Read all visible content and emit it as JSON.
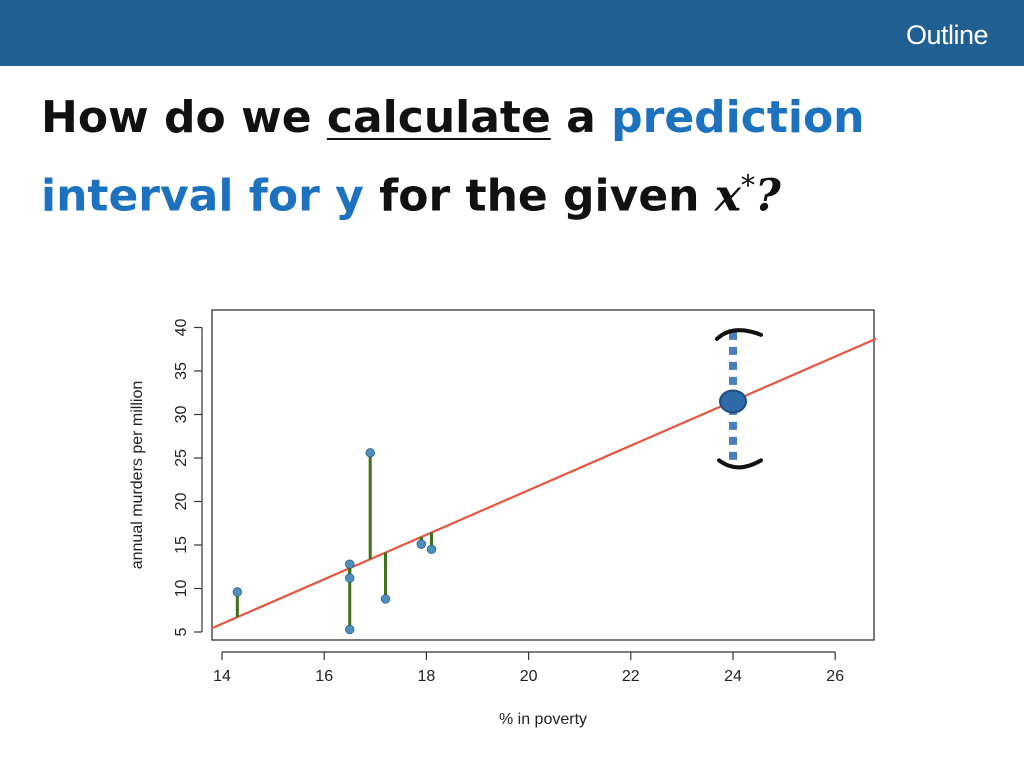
{
  "header": {
    "nav_label": "Outline",
    "bar_color": "#1f5f92"
  },
  "title": {
    "line1_part1": "How do we ",
    "line1_underlined": "calculate",
    "line1_part2": " a ",
    "line1_accent": "prediction",
    "line2_accent": "interval for y",
    "line2_part1": " for the given ",
    "math_var": "x",
    "math_sup": "*",
    "end": "?",
    "accent_color": "#1d72c0"
  },
  "chart_data": {
    "type": "scatter",
    "xlabel": "% in poverty",
    "ylabel": "annual murders per million",
    "xlim": [
      13.8,
      26.8
    ],
    "ylim": [
      4.5,
      41.5
    ],
    "x_ticks": [
      14,
      16,
      18,
      20,
      22,
      24,
      26
    ],
    "y_ticks": [
      5,
      10,
      15,
      20,
      25,
      30,
      35,
      40
    ],
    "regression_line": {
      "intercept": -29.9,
      "slope": 2.56,
      "color": "#e8553e"
    },
    "points": [
      {
        "x": 14.3,
        "y": 9.6
      },
      {
        "x": 16.5,
        "y": 12.8
      },
      {
        "x": 16.5,
        "y": 11.2
      },
      {
        "x": 16.5,
        "y": 5.3
      },
      {
        "x": 16.9,
        "y": 25.6
      },
      {
        "x": 17.2,
        "y": 8.8
      },
      {
        "x": 17.9,
        "y": 15.1
      },
      {
        "x": 18.1,
        "y": 14.5
      }
    ],
    "residual_color": "#3f6f1a",
    "point_color": "#4f8fbf",
    "prediction": {
      "x": 24.0,
      "y": 31.5,
      "lower": 24.5,
      "upper": 39.5,
      "color": "#4a7ebf"
    },
    "grid": false,
    "legend": "none"
  }
}
